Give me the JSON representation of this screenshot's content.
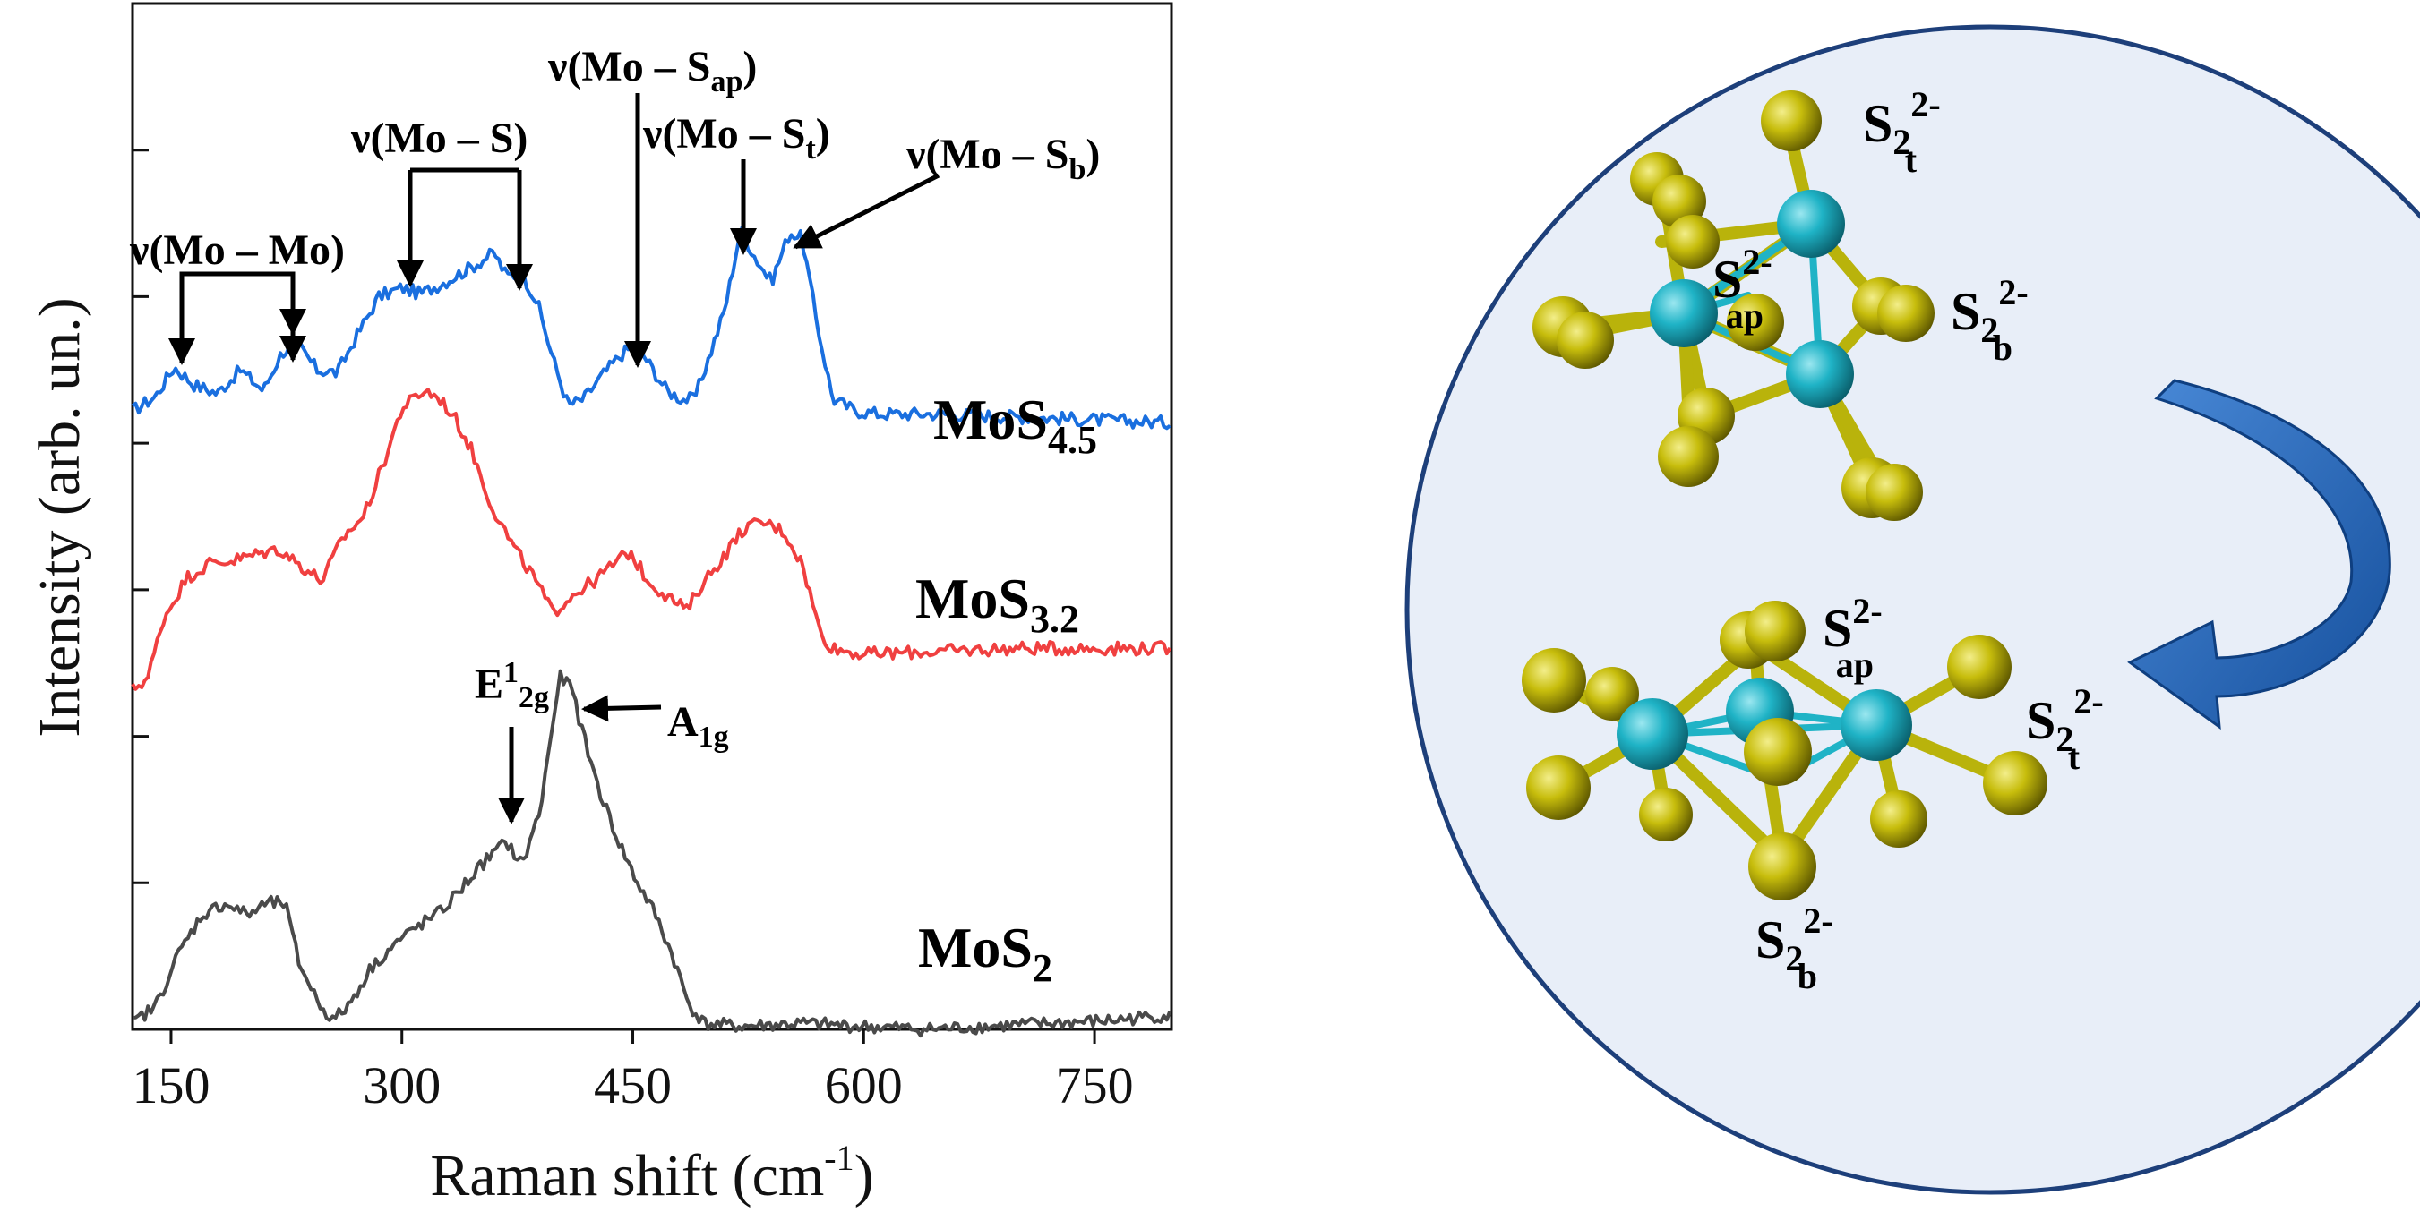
{
  "chart_data": {
    "type": "line",
    "xlabel_main": "Raman shift (cm",
    "xlabel_sup": "-1",
    "xlabel_end": ")",
    "ylabel": "Intensity (arb. un.)",
    "xlim": [
      125,
      800
    ],
    "ylim": [
      0,
      7
    ],
    "x_ticks": [
      150,
      300,
      450,
      600,
      750
    ],
    "x_tick_labels": [
      "150",
      "300",
      "450",
      "600",
      "750"
    ],
    "grid": false,
    "series": [
      {
        "name": "MoS",
        "name_sub": "4.5",
        "color": "#1a6fdf",
        "points": [
          [
            125,
            4.22
          ],
          [
            140,
            4.32
          ],
          [
            152,
            4.52
          ],
          [
            165,
            4.4
          ],
          [
            180,
            4.34
          ],
          [
            195,
            4.5
          ],
          [
            210,
            4.36
          ],
          [
            222,
            4.62
          ],
          [
            232,
            4.68
          ],
          [
            245,
            4.5
          ],
          [
            258,
            4.48
          ],
          [
            270,
            4.72
          ],
          [
            285,
            5.0
          ],
          [
            300,
            5.06
          ],
          [
            312,
            5.02
          ],
          [
            328,
            5.1
          ],
          [
            345,
            5.2
          ],
          [
            360,
            5.3
          ],
          [
            368,
            5.14
          ],
          [
            378,
            5.16
          ],
          [
            388,
            4.96
          ],
          [
            398,
            4.58
          ],
          [
            408,
            4.26
          ],
          [
            418,
            4.3
          ],
          [
            430,
            4.46
          ],
          [
            442,
            4.6
          ],
          [
            452,
            4.68
          ],
          [
            462,
            4.52
          ],
          [
            472,
            4.36
          ],
          [
            482,
            4.3
          ],
          [
            490,
            4.3
          ],
          [
            500,
            4.6
          ],
          [
            510,
            4.92
          ],
          [
            520,
            5.46
          ],
          [
            530,
            5.26
          ],
          [
            540,
            5.1
          ],
          [
            552,
            5.44
          ],
          [
            560,
            5.4
          ],
          [
            570,
            4.8
          ],
          [
            580,
            4.3
          ],
          [
            595,
            4.22
          ],
          [
            610,
            4.2
          ],
          [
            650,
            4.2
          ],
          [
            700,
            4.18
          ],
          [
            750,
            4.16
          ],
          [
            800,
            4.14
          ]
        ]
      },
      {
        "name": "MoS",
        "name_sub": "3.2",
        "color": "#f04040",
        "points": [
          [
            125,
            2.32
          ],
          [
            135,
            2.4
          ],
          [
            145,
            2.8
          ],
          [
            160,
            3.08
          ],
          [
            175,
            3.18
          ],
          [
            190,
            3.2
          ],
          [
            205,
            3.24
          ],
          [
            220,
            3.28
          ],
          [
            235,
            3.16
          ],
          [
            248,
            3.06
          ],
          [
            262,
            3.36
          ],
          [
            275,
            3.5
          ],
          [
            288,
            3.86
          ],
          [
            300,
            4.24
          ],
          [
            315,
            4.36
          ],
          [
            325,
            4.3
          ],
          [
            335,
            4.16
          ],
          [
            345,
            3.96
          ],
          [
            358,
            3.58
          ],
          [
            372,
            3.3
          ],
          [
            386,
            3.08
          ],
          [
            398,
            2.84
          ],
          [
            410,
            2.96
          ],
          [
            425,
            3.06
          ],
          [
            438,
            3.18
          ],
          [
            448,
            3.26
          ],
          [
            460,
            3.06
          ],
          [
            472,
            2.96
          ],
          [
            485,
            2.86
          ],
          [
            495,
            3.04
          ],
          [
            510,
            3.24
          ],
          [
            522,
            3.42
          ],
          [
            535,
            3.46
          ],
          [
            548,
            3.4
          ],
          [
            560,
            3.18
          ],
          [
            572,
            2.7
          ],
          [
            580,
            2.6
          ],
          [
            600,
            2.56
          ],
          [
            650,
            2.58
          ],
          [
            700,
            2.6
          ],
          [
            750,
            2.6
          ],
          [
            800,
            2.6
          ]
        ]
      },
      {
        "name": "MoS",
        "name_sub": "2",
        "color": "#4a4a4a",
        "points": [
          [
            125,
            0.04
          ],
          [
            140,
            0.16
          ],
          [
            155,
            0.52
          ],
          [
            170,
            0.78
          ],
          [
            185,
            0.86
          ],
          [
            200,
            0.78
          ],
          [
            212,
            0.86
          ],
          [
            224,
            0.86
          ],
          [
            233,
            0.46
          ],
          [
            245,
            0.2
          ],
          [
            255,
            0.06
          ],
          [
            265,
            0.16
          ],
          [
            280,
            0.42
          ],
          [
            295,
            0.58
          ],
          [
            310,
            0.7
          ],
          [
            325,
            0.8
          ],
          [
            340,
            0.98
          ],
          [
            355,
            1.16
          ],
          [
            368,
            1.28
          ],
          [
            378,
            1.12
          ],
          [
            390,
            1.5
          ],
          [
            398,
            2.1
          ],
          [
            403,
            2.4
          ],
          [
            410,
            2.34
          ],
          [
            418,
            2.0
          ],
          [
            428,
            1.64
          ],
          [
            440,
            1.3
          ],
          [
            452,
            1.02
          ],
          [
            464,
            0.8
          ],
          [
            476,
            0.5
          ],
          [
            486,
            0.18
          ],
          [
            496,
            0.04
          ],
          [
            520,
            0.02
          ],
          [
            560,
            0.04
          ],
          [
            600,
            0.02
          ],
          [
            640,
            0.0
          ],
          [
            680,
            0.02
          ],
          [
            720,
            0.04
          ],
          [
            760,
            0.06
          ],
          [
            800,
            0.1
          ]
        ]
      }
    ],
    "annotations": [
      {
        "text": "ν(Mo – Mo)",
        "sub": ""
      },
      {
        "text": "ν(Mo – S)",
        "sub": ""
      },
      {
        "text": "ν(Mo – S",
        "sub": "ap",
        "end": ")"
      },
      {
        "text": "ν(Mo – S",
        "sub": "t",
        "end": ")"
      },
      {
        "text": "ν(Mo – S",
        "sub": "b",
        "end": ")"
      },
      {
        "text": "E",
        "sup": "1",
        "sub": "2g"
      },
      {
        "text": "A",
        "sub": "1g"
      }
    ]
  },
  "diagram": {
    "ion_labels": [
      {
        "base": "S",
        "sub": "2",
        "sup": "2-",
        "sub2": "t"
      },
      {
        "base": "S",
        "sup": "2-",
        "sub2": "ap"
      },
      {
        "base": "S",
        "sub": "2",
        "sup": "2-",
        "sub2": "b"
      },
      {
        "base": "S",
        "sup": "2-",
        "sub2": "ap"
      },
      {
        "base": "S",
        "sub": "2",
        "sup": "2-",
        "sub2": "t"
      },
      {
        "base": "S",
        "sub": "2",
        "sup": "2-",
        "sub2": "b"
      }
    ],
    "colors": {
      "circle_fill": "#e8eef8",
      "circle_stroke": "#1d3f7a",
      "molybdenum": "#1fb3c6",
      "sulfur": "#c7bd0c",
      "arrow": "#1e63b8"
    }
  }
}
